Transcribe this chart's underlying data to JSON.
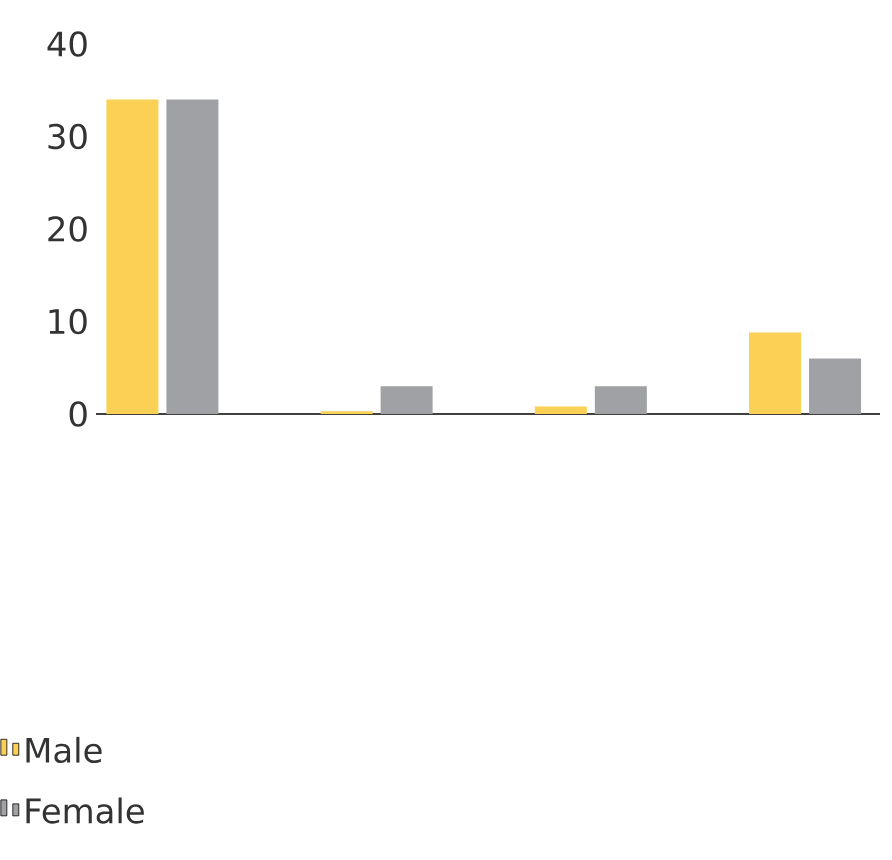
{
  "chart_data": {
    "type": "bar",
    "categories": [
      null,
      null,
      null,
      null
    ],
    "series": [
      {
        "name": "Male",
        "color": "#fad055",
        "values": [
          34,
          0.3,
          0.8,
          8.8
        ]
      },
      {
        "name": "Female",
        "color": "#a0a1a4",
        "values": [
          34,
          3,
          3,
          6
        ]
      }
    ],
    "ylim": [
      0,
      40
    ],
    "yticks": [
      0,
      10,
      20,
      30,
      40
    ],
    "legend": "bottom left",
    "grid": false
  }
}
